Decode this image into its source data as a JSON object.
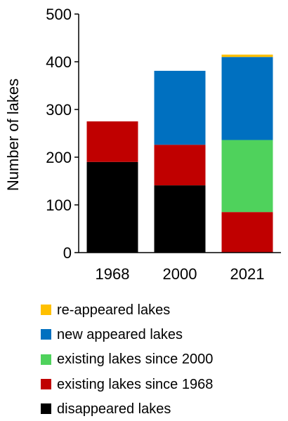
{
  "chart_data": {
    "type": "bar",
    "stacked": true,
    "categories": [
      "1968",
      "2000",
      "2021"
    ],
    "ylabel": "Number of lakes",
    "xlabel": "",
    "ylim": [
      0,
      500
    ],
    "yticks": [
      0,
      100,
      200,
      300,
      400,
      500
    ],
    "grid": false,
    "legend_position": "bottom",
    "series": [
      {
        "name": "disappeared lakes",
        "color": "#000000",
        "values": [
          190,
          141,
          0
        ]
      },
      {
        "name": "existing lakes since 1968",
        "color": "#c00000",
        "values": [
          85,
          85,
          85
        ]
      },
      {
        "name": "existing lakes since 2000",
        "color": "#4fd25c",
        "values": [
          0,
          0,
          151
        ]
      },
      {
        "name": "new appeared lakes",
        "color": "#0070c0",
        "values": [
          0,
          155,
          174
        ]
      },
      {
        "name": "re-appeared lakes",
        "color": "#ffc000",
        "values": [
          0,
          0,
          5
        ]
      }
    ],
    "legend_order": [
      4,
      3,
      2,
      1,
      0
    ]
  }
}
